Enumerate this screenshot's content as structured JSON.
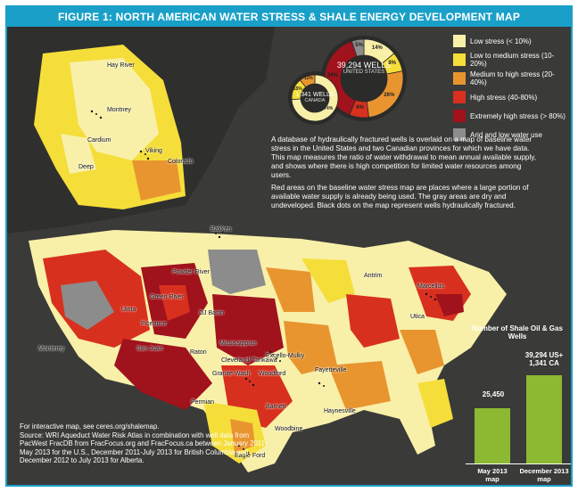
{
  "header": {
    "figure_label": "FIGURE 1:",
    "title": "NORTH AMERICAN WATER STRESS & SHALE ENERGY DEVELOPMENT MAP"
  },
  "colors": {
    "accent": "#1aa0c8",
    "background": "#3a3a38",
    "low": "#f8f0a8",
    "low_medium": "#f5de3a",
    "medium_high": "#e89530",
    "high": "#d8301f",
    "extremely_high": "#a0121c",
    "arid": "#8c8c8c",
    "bar": "#8cb832"
  },
  "legend": {
    "items": [
      {
        "label": "Low stress (< 10%)",
        "color": "#f8f0a8"
      },
      {
        "label": "Low to medium stress (10-20%)",
        "color": "#f5de3a"
      },
      {
        "label": "Medium to high stress (20-40%)",
        "color": "#e89530"
      },
      {
        "label": "High stress (40-80%)",
        "color": "#d8301f"
      },
      {
        "label": "Extremely high stress (> 80%)",
        "color": "#a0121c"
      },
      {
        "label": "Arid and low water use",
        "color": "#8c8c8c"
      }
    ]
  },
  "donut_us": {
    "count": "39,294 WELLS",
    "region": "UNITED STATES",
    "slices": [
      {
        "pct": "14%",
        "value": 14,
        "color": "#f8f0a8"
      },
      {
        "pct": "8%",
        "value": 8,
        "color": "#f5de3a"
      },
      {
        "pct": "26%",
        "value": 26,
        "color": "#e89530"
      },
      {
        "pct": "8%",
        "value": 8,
        "color": "#d8301f"
      },
      {
        "pct": "39%",
        "value": 39,
        "color": "#a0121c"
      },
      {
        "pct": "5%",
        "value": 5,
        "color": "#8c8c8c"
      }
    ]
  },
  "donut_ca": {
    "count": "1,341 WELLS",
    "region": "CANADA",
    "slices": [
      {
        "pct": "74%",
        "value": 74,
        "color": "#f8f0a8"
      },
      {
        "pct": "15%",
        "value": 15,
        "color": "#f5de3a"
      },
      {
        "pct": "11%",
        "value": 11,
        "color": "#e89530"
      }
    ]
  },
  "description": {
    "p1": "A database of hydraulically fractured wells is overlaid on a map of baseline water stress in the United States and two Canadian provinces for which we have data. This map measures the ratio of water withdrawal to mean annual available supply, and shows where there is high competition for limited water resources among users.",
    "p2": "Red areas on the baseline water stress map are places where a large portion of available water supply is already being used. The gray areas are dry and undeveloped. Black dots on the map represent wells hydraulically fractured."
  },
  "source": {
    "line1": "For interactive map, see ceres.org/shalemap.",
    "line2": "Source: WRI Aqueduct Water Risk Atlas in combination with well data from PacWest FracDB from FracFocus.org and FracFocus.ca between January 2011-May 2013 for the U.S., December 2011-July 2013 for British Columbia and December 2012 to July 2013 for Alberta."
  },
  "chart_data": {
    "type": "bar",
    "title": "Number of Shale Oil & Gas Wells",
    "categories": [
      "May 2013 map",
      "December 2013 map"
    ],
    "values": [
      25450,
      40635
    ],
    "value_labels": [
      "25,450",
      "39,294 US+ 1,341 CA"
    ],
    "ylim": [
      0,
      45000
    ]
  },
  "bar_chart": {
    "title": "Number of Shale Oil & Gas Wells",
    "bar1_value": "25,450",
    "bar2_value_line1": "39,294 US+",
    "bar2_value_line2": "1,341 CA",
    "bar1_cat_line1": "May 2013",
    "bar1_cat_line2": "map",
    "bar2_cat_line1": "December 2013",
    "bar2_cat_line2": "map"
  },
  "map_labels": {
    "hay_river": "Hay River",
    "montney": "Montney",
    "cardium": "Cardium",
    "viking": "Viking",
    "colorado": "Colorado",
    "duvernay": "Deep",
    "bakken": "Bakken",
    "powder_river": "Powder River",
    "green_river": "Green River",
    "uinta": "Uinta",
    "piceance": "Piceance",
    "dj_basin": "DJ Basin",
    "raton": "Raton",
    "san_juan": "San Juan",
    "monterey": "Monterey",
    "mississippian": "Mississippian",
    "cleveland_tonkawa": "Cleveland/ Tonkawa",
    "granite_wash": "Granite Wash",
    "woodford": "Woodford",
    "excello_mulky": "Excello-Mulky",
    "fayetteville": "Fayetteville",
    "barnett": "Barnett",
    "haynesville": "Haynesville",
    "woodbine": "Woodbine",
    "eagle_ford": "Eagle Ford",
    "antrim": "Antrim",
    "utica": "Utica",
    "marcellus": "Marcellus",
    "permian": "Permian"
  }
}
